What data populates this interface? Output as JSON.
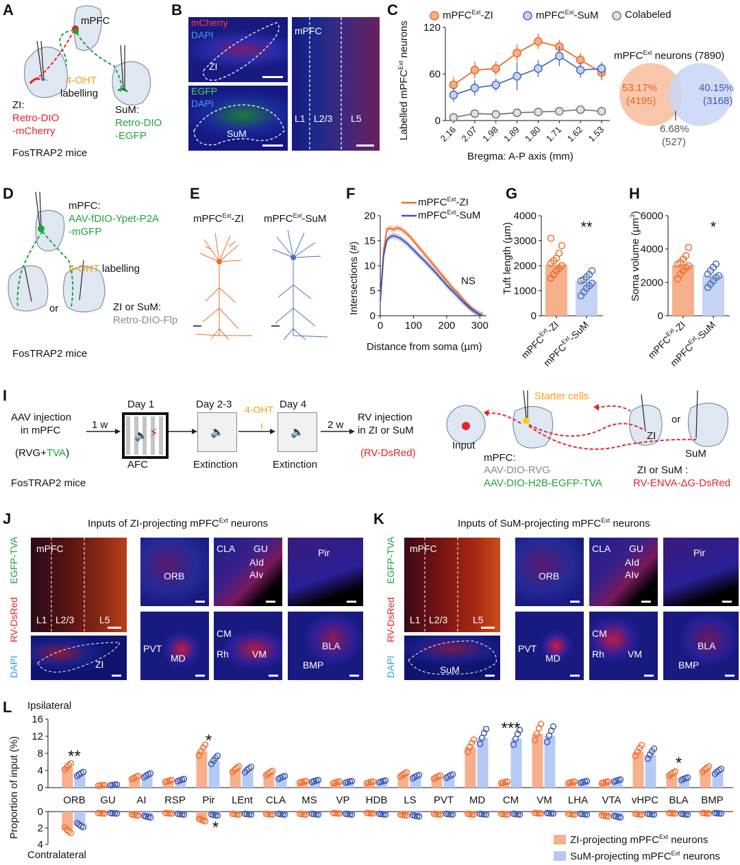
{
  "panels": [
    "A",
    "B",
    "C",
    "D",
    "E",
    "F",
    "G",
    "H",
    "I",
    "J",
    "K",
    "L"
  ],
  "A": {
    "mpfc": "mPFC",
    "ohtA": "4-OHT",
    "ohtB": "labelling",
    "ziA": "ZI:",
    "ziB": "Retro-DIO",
    "ziC": "-mCherry",
    "sumA": "SuM:",
    "sumB": "Retro-DIO",
    "sumC": "-EGFP",
    "mice": "FosTRAP2 mice"
  },
  "B": {
    "mcherry": "mCherry",
    "dapi": "DAPI",
    "zi": "ZI",
    "egfp": "EGFP",
    "dapi2": "DAPI",
    "sum": "SuM",
    "mpfc": "mPFC",
    "l1": "L1",
    "l23": "L2/3",
    "l5": "L5"
  },
  "C": {
    "legend": [
      "mPFC",
      "Ext",
      "-ZI",
      "mPFC",
      "Ext",
      "-SuM",
      "Colabeled"
    ],
    "ylabelA": "Labelled mPFC",
    "ylabelB": "Ext",
    "ylabelC": " neurons",
    "xlabel": "Bregma: A-P axis (mm)",
    "yticks": [
      "0",
      "60",
      "120"
    ],
    "xticks": [
      "2.16",
      "2.07",
      "1.98",
      "1.89",
      "1.80",
      "1.71",
      "1.62",
      "1.53"
    ],
    "pie_titleA": "mPFC",
    "pie_titleB": "Ext",
    "pie_titleC": " neurons (7890)",
    "zi_pct": "53.17%",
    "zi_n": "(4195)",
    "sum_pct": "40.15%",
    "sum_n": "(3168)",
    "co_pct": "6.68%",
    "co_n": "(527)"
  },
  "D": {
    "mpfcA": "mPFC:",
    "mpfcB": "AAV-fDIO-Ypet-P2A",
    "mpfcC": "-mGFP",
    "oht": "4-OHT",
    "ohtB": " labelling",
    "or": "or",
    "ziA": "ZI or SuM:",
    "ziB": "Retro-DIO-Flp",
    "mice": "FosTRAP2 mice"
  },
  "E": {
    "zi": "mPFC",
    "ext": "Ext",
    "zis": "-ZI",
    "sum": "mPFC",
    "ext2": "Ext",
    "sums": "-SuM"
  },
  "F": {
    "legend": [
      "mPFC",
      "Ext",
      "-ZI",
      "mPFC",
      "Ext",
      "-SuM"
    ],
    "ylabel": "Intersections (#)",
    "xlabel": "Distance from soma (µm)",
    "yticks": [
      "0",
      "5",
      "10",
      "15",
      "20"
    ],
    "xticks": [
      "0",
      "100",
      "200",
      "300"
    ],
    "ns": "NS"
  },
  "G": {
    "ylabel": "Tuft length (µm)",
    "yticks": [
      "0",
      "1000",
      "2000",
      "3000",
      "4000"
    ],
    "sig": "**",
    "cats": [
      "mPFC",
      "Ext",
      "-ZI",
      "mPFC",
      "Ext",
      "-SuM"
    ]
  },
  "H": {
    "ylabel": "Soma volume (µm",
    "ylabel_sup": "3",
    "ylabel_end": ")",
    "yticks": [
      "0",
      "2000",
      "4000",
      "6000"
    ],
    "sig": "*",
    "cats": [
      "mPFC",
      "Ext",
      "-ZI",
      "mPFC",
      "Ext",
      "-SuM"
    ]
  },
  "I": {
    "aavA": "AAV injection",
    "aavB": "in mPFC",
    "rvg": "(RVG+",
    "tva": "TVA",
    "rvgEnd": ")",
    "w1": "1 w",
    "day1": "Day 1",
    "afc": "AFC",
    "day23": "Day 2-3",
    "ext1": "Extinction",
    "oht": "4-OHT",
    "day4": "Day 4",
    "ext2": "Extinction",
    "w2": "2 w",
    "rvA": "RV injection",
    "rvB": "in ZI or SuM",
    "rvC": "(RV-DsRed)",
    "mice": "FosTRAP2 mice",
    "starter": "Starter cells",
    "input": "Input",
    "mpfcA": "mPFC:",
    "mpfcB": "AAV-DIO-RVG",
    "mpfcC": "AAV-DIO-H2B-EGFP-TVA",
    "or": "or",
    "zi": "ZI",
    "sum": "SuM",
    "ziorsum": "ZI or SuM :",
    "rvenva": "RV-ENVA-ΔG-DsRed"
  },
  "J": {
    "titleA": "Inputs of ZI-projecting mPFC",
    "titleB": "Ext",
    "titleC": " neurons",
    "side": [
      "EGFP-TVA",
      "RV-DsRed",
      "DAPI"
    ],
    "labels": [
      "mPFC",
      "L1",
      "L2/3",
      "L5",
      "ZI",
      "ORB",
      "CLA",
      "GU",
      "AId",
      "AIv",
      "Pir",
      "PVT",
      "MD",
      "CM",
      "Rh",
      "VM",
      "BLA",
      "BMP"
    ]
  },
  "K": {
    "titleA": "Inputs of SuM-projecting mPFC",
    "titleB": "Ext",
    "titleC": " neurons",
    "side": [
      "EGFP-TVA",
      "RV-DsRed",
      "DAPI"
    ],
    "labels": [
      "mPFC",
      "L1",
      "L2/3",
      "L5",
      "SuM",
      "ORB",
      "CLA",
      "GU",
      "AId",
      "AIv",
      "Pir",
      "PVT",
      "MD",
      "CM",
      "Rh",
      "VM",
      "BLA",
      "BMP"
    ]
  },
  "L": {
    "ipsi": "Ipsilateral",
    "contra": "Contralateral",
    "ylabel": "Proportion of input (%)",
    "legend_zi": "ZI-projecting mPFC",
    "legend_sum": "SuM-projecting mPFC",
    "legend_ext": "Ext",
    "legend_end": " neurons",
    "yticks_top": [
      "0",
      "4",
      "8",
      "12",
      "16"
    ],
    "yticks_bot": [
      "0",
      "2",
      "4"
    ]
  },
  "chart_data": [
    {
      "type": "line",
      "panel": "C",
      "title": "",
      "xlabel": "Bregma: A-P axis (mm)",
      "ylabel": "Labelled mPFC Ext neurons",
      "categories": [
        "2.16",
        "2.07",
        "1.98",
        "1.89",
        "1.80",
        "1.71",
        "1.62",
        "1.53"
      ],
      "ylim": [
        0,
        120
      ],
      "series": [
        {
          "name": "mPFC Ext-ZI",
          "color": "#ef6b2a",
          "values": [
            46,
            65,
            67,
            87,
            102,
            95,
            78,
            62
          ],
          "err": [
            10,
            11,
            9,
            11,
            10,
            9,
            9,
            10
          ]
        },
        {
          "name": "mPFC Ext-SuM",
          "color": "#4e6fbf",
          "values": [
            33,
            42,
            46,
            57,
            67,
            83,
            65,
            67
          ],
          "err": [
            9,
            10,
            8,
            18,
            11,
            13,
            10,
            8
          ]
        },
        {
          "name": "Colabeled",
          "color": "#7a7a7a",
          "values": [
            4,
            9,
            8,
            10,
            11,
            12,
            14,
            12
          ],
          "err": [
            2,
            2,
            2,
            2,
            2,
            2,
            2,
            2
          ]
        }
      ]
    },
    {
      "type": "pie",
      "panel": "C",
      "title": "mPFC Ext neurons (7890)",
      "categories": [
        "ZI",
        "SuM",
        "Colabeled"
      ],
      "values": [
        4195,
        3168,
        527
      ],
      "percent": [
        53.17,
        40.15,
        6.68
      ]
    },
    {
      "type": "line",
      "panel": "F",
      "xlabel": "Distance from soma (µm)",
      "ylabel": "Intersections (#)",
      "xlim": [
        0,
        320
      ],
      "ylim": [
        0,
        20
      ],
      "x": [
        0,
        10,
        20,
        30,
        40,
        50,
        60,
        70,
        80,
        90,
        100,
        110,
        120,
        130,
        140,
        150,
        160,
        170,
        180,
        190,
        200,
        210,
        220,
        230,
        240,
        250,
        260,
        270,
        280,
        290,
        300,
        310
      ],
      "series": [
        {
          "name": "mPFC Ext-ZI",
          "color": "#ef6b2a",
          "values": [
            3,
            13,
            17.3,
            17.5,
            17.2,
            17.6,
            17.4,
            17,
            16.4,
            15.8,
            15,
            14.2,
            13.4,
            12.6,
            11.8,
            11,
            10.2,
            9.4,
            8.6,
            7.8,
            7,
            6.2,
            5.4,
            4.8,
            4,
            3.2,
            2.5,
            1.8,
            1.2,
            0.7,
            0.3,
            0
          ]
        },
        {
          "name": "mPFC Ext-SuM",
          "color": "#3b55ad",
          "values": [
            3,
            12,
            15.2,
            15.8,
            16,
            15.8,
            15.5,
            15,
            14.5,
            13.8,
            13.2,
            12.5,
            11.8,
            11.2,
            10.5,
            9.8,
            9.1,
            8.4,
            7.6,
            6.9,
            6.1,
            5.4,
            4.8,
            4.1,
            3.4,
            2.7,
            2.1,
            1.5,
            1,
            0.6,
            0.2,
            0
          ]
        }
      ]
    },
    {
      "type": "bar",
      "panel": "G",
      "ylabel": "Tuft length (µm)",
      "categories": [
        "mPFC Ext-ZI",
        "mPFC Ext-SuM"
      ],
      "values": [
        2050,
        1380
      ],
      "ylim": [
        0,
        4000
      ],
      "points": [
        [
          1500,
          1650,
          1800,
          1900,
          2000,
          2100,
          2200,
          2300,
          2500,
          2800,
          3100
        ],
        [
          800,
          950,
          1100,
          1200,
          1300,
          1400,
          1450,
          1550,
          1650,
          1800
        ]
      ]
    },
    {
      "type": "bar",
      "panel": "H",
      "ylabel": "Soma volume (µm3)",
      "categories": [
        "mPFC Ext-ZI",
        "mPFC Ext-SuM"
      ],
      "values": [
        3050,
        2450
      ],
      "ylim": [
        0,
        6000
      ],
      "points": [
        [
          2200,
          2500,
          2700,
          2900,
          3000,
          3100,
          3200,
          3400,
          3600,
          4100
        ],
        [
          1700,
          1900,
          2100,
          2300,
          2400,
          2500,
          2700,
          2900,
          3100
        ]
      ]
    },
    {
      "type": "bar",
      "panel": "L",
      "ylabel": "Proportion of input (%)",
      "categories": [
        "ORB",
        "GU",
        "AI",
        "RSP",
        "Pir",
        "LEnt",
        "CLA",
        "MS",
        "VP",
        "HDB",
        "LS",
        "PVT",
        "MD",
        "CM",
        "VM",
        "LHA",
        "VTA",
        "vHPC",
        "BLA",
        "BMP"
      ],
      "ylim_ipsi": [
        0,
        16
      ],
      "ylim_contra": [
        0,
        4
      ],
      "series": [
        {
          "name": "ZI-projecting mPFC Ext neurons",
          "color": "#f6b08c",
          "ipsi": [
            4.8,
            0.5,
            2.3,
            1.5,
            8.5,
            4.2,
            3.3,
            1.3,
            1.2,
            1.2,
            3.0,
            2.4,
            9.5,
            1.2,
            12.6,
            1.2,
            1.2,
            8.4,
            3.2,
            4.2
          ],
          "contra": [
            2.2,
            0.2,
            0.4,
            0.2,
            1.0,
            0.3,
            0.3,
            0.3,
            0.2,
            0.2,
            0.4,
            0.3,
            0.3,
            0.3,
            0.2,
            0.3,
            0.5,
            0.3,
            0.2,
            0.2
          ]
        },
        {
          "name": "SuM-projecting mPFC Ext neurons",
          "color": "#b6c9f4",
          "ipsi": [
            3.1,
            0.6,
            2.8,
            1.7,
            6.3,
            4.1,
            2.3,
            1.5,
            1.3,
            1.4,
            2.5,
            2.6,
            11.6,
            11.4,
            12.1,
            1.3,
            1.6,
            7.7,
            2.0,
            3.7
          ],
          "contra": [
            1.6,
            0.2,
            0.6,
            0.3,
            0.4,
            0.3,
            0.3,
            0.3,
            0.3,
            0.3,
            0.5,
            0.3,
            0.3,
            0.3,
            0.2,
            0.3,
            0.6,
            0.3,
            0.3,
            0.2
          ]
        }
      ],
      "significance": {
        "ORB": "**",
        "Pir": "*",
        "CM": "***",
        "BLA": "*",
        "Pir_contra": "*"
      }
    }
  ]
}
